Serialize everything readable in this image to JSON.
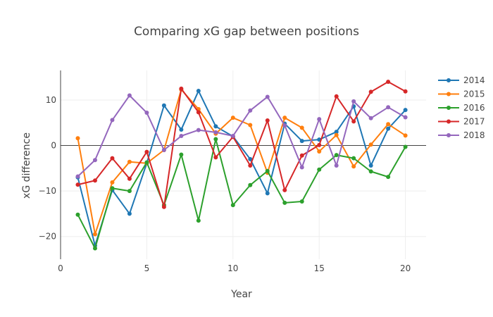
{
  "chart_data": {
    "type": "line",
    "title": "Comparing xG gap between positions",
    "xlabel": "Year",
    "ylabel": "xG difference",
    "xlim": [
      0,
      21.2
    ],
    "ylim": [
      -25,
      16.5
    ],
    "xticks": [
      0,
      5,
      10,
      15,
      20
    ],
    "yticks": [
      -20,
      -10,
      0,
      10
    ],
    "grid": true,
    "zero_line": true,
    "legend_position": "top-right",
    "x": [
      1,
      2,
      3,
      4,
      5,
      6,
      7,
      8,
      9,
      10,
      11,
      12,
      13,
      14,
      15,
      16,
      17,
      18,
      19,
      20
    ],
    "series": [
      {
        "name": "2014",
        "color": "#1f77b4",
        "values": [
          -7.0,
          -22.0,
          -9.8,
          -15.0,
          -3.9,
          8.8,
          3.5,
          12.0,
          4.2,
          2.0,
          -3.0,
          -10.5,
          4.8,
          1.0,
          1.3,
          3.0,
          8.6,
          -4.4,
          3.7,
          7.8
        ]
      },
      {
        "name": "2015",
        "color": "#ff7f0e",
        "values": [
          1.6,
          -19.5,
          -8.1,
          -3.6,
          -3.9,
          -1.0,
          12.3,
          8.0,
          2.6,
          6.1,
          4.5,
          -6.0,
          6.1,
          3.9,
          -1.3,
          2.3,
          -4.6,
          0.2,
          4.7,
          2.2
        ]
      },
      {
        "name": "2016",
        "color": "#2ca02c",
        "values": [
          -15.2,
          -22.6,
          -9.4,
          -10.0,
          -3.7,
          -13.1,
          -2.0,
          -16.5,
          1.4,
          -13.1,
          -8.7,
          -5.6,
          -12.6,
          -12.3,
          -5.3,
          -2.1,
          -2.8,
          -5.7,
          -6.9,
          -0.3
        ]
      },
      {
        "name": "2017",
        "color": "#d62728",
        "values": [
          -8.6,
          -7.7,
          -2.8,
          -7.3,
          -1.4,
          -13.5,
          12.5,
          7.3,
          -2.6,
          1.9,
          -4.4,
          5.5,
          -9.8,
          -2.2,
          0.1,
          10.8,
          5.3,
          11.8,
          14.0,
          11.9
        ]
      },
      {
        "name": "2018",
        "color": "#9467bd",
        "values": [
          -6.8,
          -3.2,
          5.6,
          11.0,
          7.2,
          -1.0,
          2.1,
          3.4,
          2.9,
          2.1,
          7.7,
          10.7,
          4.4,
          -4.8,
          5.8,
          -4.4,
          9.7,
          6.0,
          8.4,
          6.2
        ]
      }
    ]
  }
}
